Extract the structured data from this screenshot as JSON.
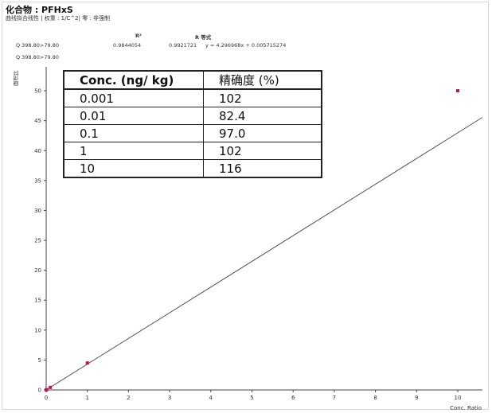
{
  "header": {
    "compound": "化合物 : PFHxS",
    "fit_info": "曲线拟合线性 | 权重 : 1/C^2| 零 : 非强制",
    "col_r2": "R²",
    "col_eq": "R 等式",
    "transition_row": "Q 398.80>79.80",
    "r2_value": "0.9844054",
    "r_value": "0.9921721",
    "equation": "y = 4.296968x + 0.005715274",
    "transition_label": "Q 398.80>79.80"
  },
  "chart_data": {
    "type": "scatter",
    "xlabel": "Conc. Ratio",
    "ylabel": "面积比",
    "xlim": [
      0,
      10.6
    ],
    "ylim": [
      0,
      54
    ],
    "x_ticks": [
      0,
      1,
      2,
      3,
      4,
      5,
      6,
      7,
      8,
      9,
      10
    ],
    "y_ticks": [
      0,
      5,
      10,
      15,
      20,
      25,
      30,
      35,
      40,
      45,
      50
    ],
    "fit_line": {
      "slope": 4.296968,
      "intercept": 0.005715274
    },
    "points": [
      {
        "x": 0.001,
        "y": 0.0101
      },
      {
        "x": 0.01,
        "y": 0.041
      },
      {
        "x": 0.1,
        "y": 0.42
      },
      {
        "x": 1,
        "y": 4.5
      },
      {
        "x": 10,
        "y": 50
      }
    ],
    "point_color": "#c0134e",
    "line_color": "#555555"
  },
  "table": {
    "headers": [
      "Conc. (ng/ kg)",
      "精确度 (%)"
    ],
    "rows": [
      [
        "0.001",
        "102"
      ],
      [
        "0.01",
        "82.4"
      ],
      [
        "0.1",
        "97.0"
      ],
      [
        "1",
        "102"
      ],
      [
        "10",
        "116"
      ]
    ]
  }
}
